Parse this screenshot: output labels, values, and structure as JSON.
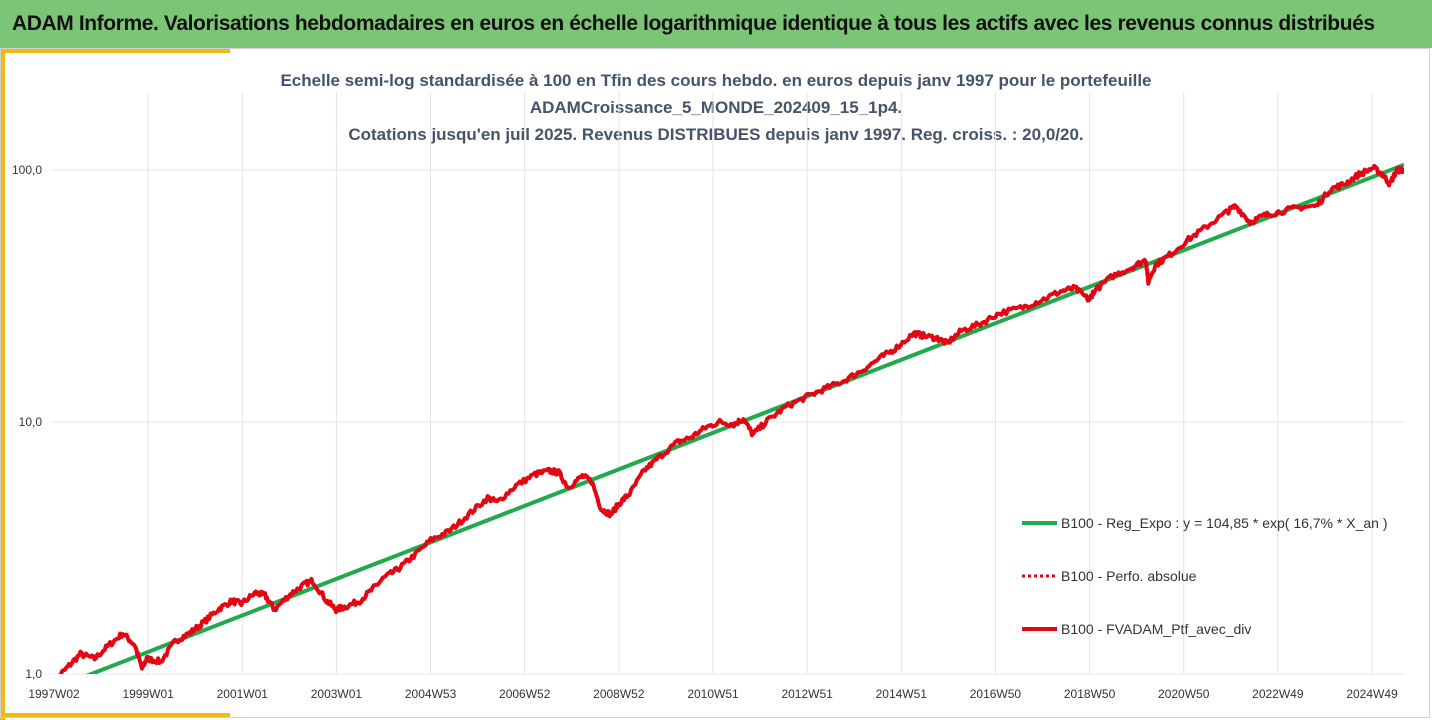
{
  "banner": {
    "title": "ADAM Informe. Valorisations hebdomadaires en euros en échelle logarithmique identique à tous les actifs avec les revenus connus distribués"
  },
  "colors": {
    "banner": "#7cc576",
    "accent": "#f2b81a",
    "regression": "#21a94d",
    "portfolio": "#e30613",
    "grid": "#e4e4e4",
    "title_text": "#44546a"
  },
  "chart_data": {
    "type": "line",
    "title_lines": [
      "Echelle semi-log standardisée à 100 en Tfin des cours hebdo.  en euros depuis janv 1997 pour le portefeuille",
      "ADAMCroissance_5_MONDE_202409_15_1p4.",
      "Cotations  jusqu'en juil 2025. Revenus DISTRIBUES depuis janv 1997. Reg. croiss. : 20,0/20."
    ],
    "y_scale": "log",
    "ylim": [
      1,
      100
    ],
    "y_ticks": [
      1,
      10,
      100
    ],
    "y_tick_labels": [
      "1,0",
      "10,0",
      "100,0"
    ],
    "x_tick_labels": [
      "1997W02",
      "1999W01",
      "2001W01",
      "2003W01",
      "2004W53",
      "2006W52",
      "2008W52",
      "2010W51",
      "2012W51",
      "2014W51",
      "2016W50",
      "2018W50",
      "2020W50",
      "2022W49",
      "2024W49"
    ],
    "x_range": [
      1997.0,
      2025.55
    ],
    "grid": true,
    "legend_position": "right",
    "series": [
      {
        "name": "B100 - Reg_Expo : y = 104,85 * exp( 16,7% *  X_an )",
        "style": "solid-green",
        "x": [
          1997.0,
          2025.55
        ],
        "values": [
          0.87,
          104.85
        ]
      },
      {
        "name": "B100 - Perfo. absolue",
        "style": "dotted-red",
        "x": [],
        "values": []
      },
      {
        "name": "B100 - FVADAM_Ptf_avec_div",
        "style": "solid-red",
        "x": [
          1997.0,
          1997.3,
          1997.6,
          1997.9,
          1998.2,
          1998.5,
          1998.75,
          1998.9,
          1999.0,
          1999.3,
          1999.6,
          1999.9,
          2000.2,
          2000.5,
          2000.8,
          2001.0,
          2001.3,
          2001.5,
          2001.7,
          2002.0,
          2002.3,
          2002.5,
          2002.8,
          2003.0,
          2003.2,
          2003.5,
          2003.8,
          2004.0,
          2004.3,
          2004.6,
          2005.0,
          2005.4,
          2005.8,
          2006.2,
          2006.4,
          2006.8,
          2007.2,
          2007.5,
          2007.7,
          2007.9,
          2008.2,
          2008.4,
          2008.6,
          2008.8,
          2009.0,
          2009.2,
          2009.5,
          2009.8,
          2010.2,
          2010.5,
          2010.8,
          2011.1,
          2011.4,
          2011.6,
          2011.8,
          2012.1,
          2012.5,
          2012.9,
          2013.3,
          2013.7,
          2014.1,
          2014.5,
          2014.8,
          2015.2,
          2015.4,
          2015.7,
          2015.9,
          2016.2,
          2016.6,
          2017.0,
          2017.5,
          2017.9,
          2018.3,
          2018.6,
          2018.9,
          2019.0,
          2019.4,
          2019.8,
          2020.1,
          2020.15,
          2020.3,
          2020.6,
          2021.0,
          2021.4,
          2021.8,
          2022.0,
          2022.3,
          2022.6,
          2022.9,
          2023.3,
          2023.7,
          2024.0,
          2024.3,
          2024.6,
          2024.9,
          2025.1,
          2025.25,
          2025.4,
          2025.55
        ],
        "values": [
          0.92,
          1.05,
          1.2,
          1.15,
          1.3,
          1.45,
          1.3,
          1.05,
          1.15,
          1.12,
          1.35,
          1.45,
          1.6,
          1.8,
          1.95,
          1.9,
          2.1,
          2.05,
          1.8,
          2.05,
          2.25,
          2.35,
          1.95,
          1.8,
          1.85,
          1.95,
          2.2,
          2.4,
          2.6,
          2.9,
          3.4,
          3.7,
          4.3,
          5.0,
          4.8,
          5.6,
          6.2,
          6.4,
          6.3,
          5.5,
          6.1,
          5.8,
          4.5,
          4.3,
          4.8,
          5.2,
          6.4,
          7.2,
          8.3,
          8.7,
          9.5,
          10.0,
          9.8,
          10.3,
          8.9,
          10.1,
          11.5,
          12.5,
          13.5,
          14.5,
          16.0,
          18.0,
          19.5,
          22.5,
          22.0,
          21.5,
          20.5,
          23.0,
          24.5,
          27.0,
          28.5,
          30.5,
          33.0,
          34.0,
          30.5,
          33.0,
          38.0,
          41.0,
          44.0,
          36.0,
          42.0,
          46.0,
          53.0,
          60.0,
          68.0,
          72.0,
          62.0,
          66.0,
          68.0,
          71.0,
          72.0,
          84.0,
          88.0,
          96.0,
          102.0,
          96.0,
          88.0,
          100.0,
          100.0
        ]
      }
    ]
  }
}
